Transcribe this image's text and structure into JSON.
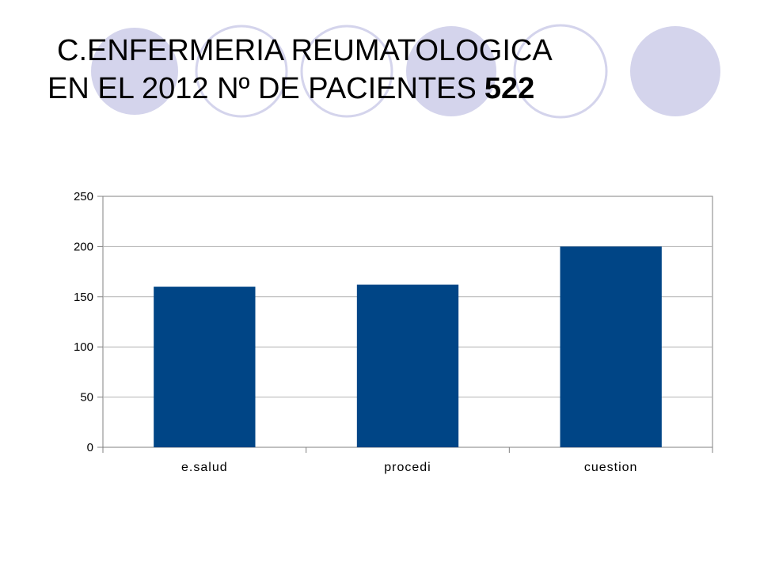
{
  "slide": {
    "title_line1": "C.ENFERMERIA REUMATOLOGICA",
    "title_line2_prefix": "EN EL 2012 Nº DE PACIENTES",
    "title_count": "522",
    "decor_color": "#d4d4ec",
    "decor_icon": "circle-decoration"
  },
  "chart_data": {
    "type": "bar",
    "categories": [
      "e.salud",
      "procedi",
      "cuestion"
    ],
    "values": [
      160,
      162,
      200
    ],
    "title": "",
    "xlabel": "",
    "ylabel": "",
    "ylim": [
      0,
      250
    ],
    "yticks": [
      0,
      50,
      100,
      150,
      200,
      250
    ],
    "grid": true,
    "legend": "none",
    "bar_color": "#004586"
  }
}
